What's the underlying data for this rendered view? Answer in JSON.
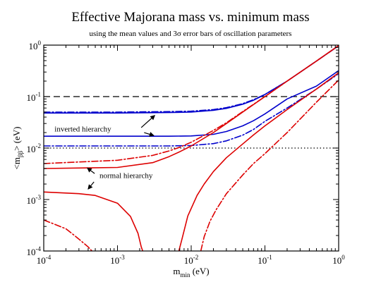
{
  "chart_data": {
    "type": "line",
    "title": "Effective Majorana mass vs. minimum mass",
    "subtitle": "using the mean values and 3σ error bars of oscillation parameters",
    "xlabel": {
      "main": "m",
      "sub": "min",
      "unit": " (eV)"
    },
    "ylabel": {
      "pre": "<m",
      "sub": "ββ",
      "post": "> (eV)"
    },
    "xscale": "log",
    "yscale": "log",
    "xlim": [
      0.0001,
      1
    ],
    "ylim": [
      0.0001,
      1
    ],
    "x_major_ticks": [
      {
        "value": 0.0001,
        "base": "10",
        "exp": "-4"
      },
      {
        "value": 0.001,
        "base": "10",
        "exp": "-3"
      },
      {
        "value": 0.01,
        "base": "10",
        "exp": "-2"
      },
      {
        "value": 0.1,
        "base": "10",
        "exp": "-1"
      },
      {
        "value": 1,
        "base": "10",
        "exp": "0"
      }
    ],
    "y_major_ticks": [
      {
        "value": 0.0001,
        "base": "10",
        "exp": "-4"
      },
      {
        "value": 0.001,
        "base": "10",
        "exp": "-3"
      },
      {
        "value": 0.01,
        "base": "10",
        "exp": "-2"
      },
      {
        "value": 0.1,
        "base": "10",
        "exp": "-1"
      },
      {
        "value": 1,
        "base": "10",
        "exp": "0"
      }
    ],
    "grid": false,
    "reference_lines": [
      {
        "y": 0.1,
        "style": "dashed",
        "color": "#000000"
      },
      {
        "y": 0.01,
        "style": "dotted",
        "color": "#000000"
      }
    ],
    "series": [
      {
        "color": "#0000cc",
        "style": "solid",
        "x": [
          0.0001,
          0.001,
          0.005,
          0.01,
          0.02,
          0.03,
          0.05,
          0.07,
          0.1,
          0.2,
          0.5,
          1
        ],
        "y": [
          0.048,
          0.048,
          0.049,
          0.05,
          0.054,
          0.059,
          0.071,
          0.085,
          0.11,
          0.2,
          0.49,
          0.98
        ]
      },
      {
        "color": "#0000cc",
        "style": "dashdot",
        "x": [
          0.0001,
          0.001,
          0.005,
          0.01,
          0.02,
          0.03,
          0.05,
          0.07,
          0.1,
          0.2,
          0.5,
          1
        ],
        "y": [
          0.05,
          0.05,
          0.051,
          0.052,
          0.056,
          0.061,
          0.073,
          0.087,
          0.11,
          0.2,
          0.49,
          0.97
        ]
      },
      {
        "color": "#0000cc",
        "style": "solid",
        "x": [
          0.0001,
          0.001,
          0.005,
          0.01,
          0.02,
          0.03,
          0.05,
          0.07,
          0.1,
          0.2,
          0.5,
          1
        ],
        "y": [
          0.017,
          0.017,
          0.017,
          0.0172,
          0.0185,
          0.021,
          0.027,
          0.034,
          0.046,
          0.09,
          0.16,
          0.32
        ]
      },
      {
        "color": "#0000cc",
        "style": "dashdot",
        "x": [
          0.0001,
          0.001,
          0.005,
          0.01,
          0.02,
          0.03,
          0.05,
          0.07,
          0.1,
          0.2,
          0.5,
          1
        ],
        "y": [
          0.011,
          0.011,
          0.011,
          0.0112,
          0.0122,
          0.0138,
          0.0178,
          0.023,
          0.033,
          0.06,
          0.14,
          0.28
        ]
      },
      {
        "color": "#dd0000",
        "style": "solid",
        "x": [
          0.0001,
          0.001,
          0.003,
          0.005,
          0.007,
          0.01,
          0.02,
          0.03,
          0.05,
          0.1,
          0.2,
          0.5,
          1
        ],
        "y": [
          0.004,
          0.0042,
          0.0052,
          0.0068,
          0.0085,
          0.011,
          0.02,
          0.03,
          0.05,
          0.1,
          0.2,
          0.49,
          0.98
        ]
      },
      {
        "color": "#dd0000",
        "style": "dashdot",
        "x": [
          0.0001,
          0.001,
          0.003,
          0.005,
          0.007,
          0.01,
          0.02,
          0.03,
          0.05,
          0.1,
          0.2,
          0.5,
          1
        ],
        "y": [
          0.005,
          0.0058,
          0.0072,
          0.0088,
          0.0104,
          0.013,
          0.022,
          0.031,
          0.051,
          0.1,
          0.2,
          0.49,
          0.98
        ]
      },
      {
        "color": "#dd0000",
        "style": "solid",
        "x": [
          0.0001,
          0.0003,
          0.0005,
          0.001,
          0.0015,
          0.0019,
          0.0021,
          0.0022
        ],
        "y": [
          0.0014,
          0.0013,
          0.0012,
          0.00085,
          0.00047,
          0.00022,
          0.00012,
          0.0001
        ]
      },
      {
        "color": "#dd0000",
        "style": "solid",
        "x": [
          0.0068,
          0.0075,
          0.009,
          0.012,
          0.015,
          0.02,
          0.03,
          0.05,
          0.07,
          0.1,
          0.2,
          0.5,
          1
        ],
        "y": [
          0.0001,
          0.00017,
          0.00048,
          0.0012,
          0.002,
          0.0035,
          0.0065,
          0.012,
          0.018,
          0.027,
          0.056,
          0.14,
          0.29
        ]
      },
      {
        "color": "#dd0000",
        "style": "dashdot",
        "x": [
          0.0001,
          0.0002,
          0.0003,
          0.0004,
          0.00045
        ],
        "y": [
          0.0004,
          0.00027,
          0.00017,
          0.00012,
          0.0001
        ]
      },
      {
        "color": "#dd0000",
        "style": "dashdot",
        "x": [
          0.0135,
          0.015,
          0.018,
          0.022,
          0.03,
          0.05,
          0.07,
          0.1,
          0.2,
          0.5,
          1
        ],
        "y": [
          0.0001,
          0.00019,
          0.00038,
          0.00065,
          0.0013,
          0.003,
          0.005,
          0.0078,
          0.02,
          0.078,
          0.21
        ]
      }
    ],
    "annotations": [
      {
        "text": "inverted hierarchy",
        "text_at": {
          "x": 0.00014,
          "y": 0.021
        },
        "arrows": [
          {
            "from": {
              "x": 0.0021,
              "y": 0.025
            },
            "to": {
              "x": 0.0032,
              "y": 0.043
            }
          },
          {
            "from": {
              "x": 0.0023,
              "y": 0.02
            },
            "to": {
              "x": 0.0031,
              "y": 0.0175
            }
          }
        ]
      },
      {
        "text": "normal hierarchy",
        "text_at": {
          "x": 0.00057,
          "y": 0.0026
        },
        "arrows": [
          {
            "from": {
              "x": 0.00049,
              "y": 0.0032
            },
            "to": {
              "x": 0.00039,
              "y": 0.0041
            }
          },
          {
            "from": {
              "x": 0.00048,
              "y": 0.0022
            },
            "to": {
              "x": 0.0004,
              "y": 0.0016
            }
          }
        ]
      }
    ]
  }
}
